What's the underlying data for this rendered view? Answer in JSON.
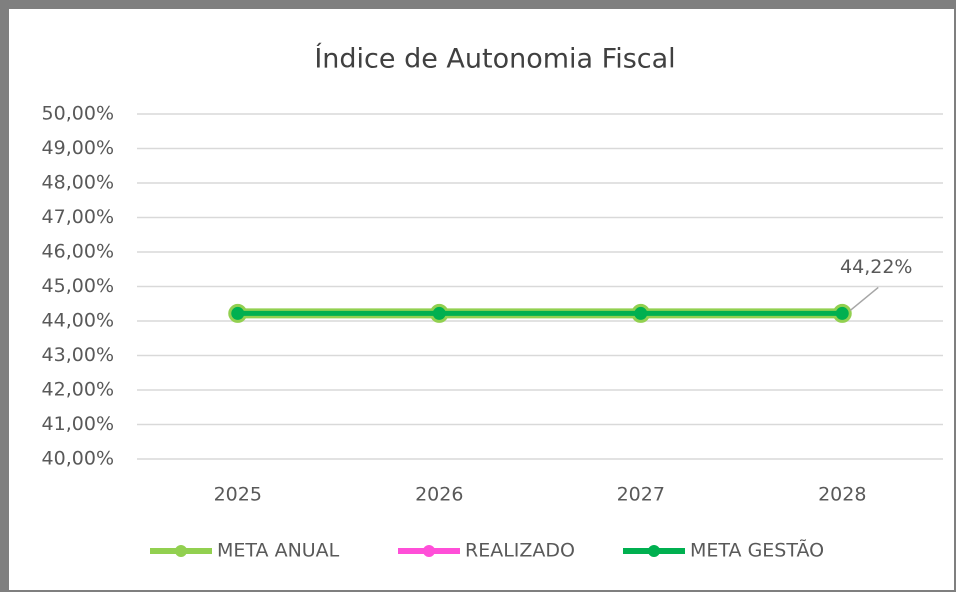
{
  "chart_data": {
    "type": "line",
    "title": "Índice de Autonomia Fiscal",
    "categories": [
      "2025",
      "2026",
      "2027",
      "2028"
    ],
    "series": [
      {
        "name": "META ANUAL",
        "color": "#92d050",
        "values": [
          44.22,
          44.22,
          44.22,
          44.22
        ],
        "value_labels": [
          null,
          null,
          null,
          "44,22%"
        ]
      },
      {
        "name": "REALIZADO",
        "color": "#ff4fd8",
        "values": [
          null,
          null,
          null,
          null
        ]
      },
      {
        "name": "META GESTÃO",
        "color": "#00b050",
        "values": [
          44.22,
          44.22,
          44.22,
          44.22
        ]
      }
    ],
    "ylim": [
      40,
      50
    ],
    "yticks": [
      {
        "value": 40,
        "label": "40,00%"
      },
      {
        "value": 41,
        "label": "41,00%"
      },
      {
        "value": 42,
        "label": "42,00%"
      },
      {
        "value": 43,
        "label": "43,00%"
      },
      {
        "value": 44,
        "label": "44,00%"
      },
      {
        "value": 45,
        "label": "45,00%"
      },
      {
        "value": 46,
        "label": "46,00%"
      },
      {
        "value": 47,
        "label": "47,00%"
      },
      {
        "value": 48,
        "label": "48,00%"
      },
      {
        "value": 49,
        "label": "49,00%"
      },
      {
        "value": 50,
        "label": "50,00%"
      }
    ],
    "grid": true,
    "legend": "bottom"
  }
}
